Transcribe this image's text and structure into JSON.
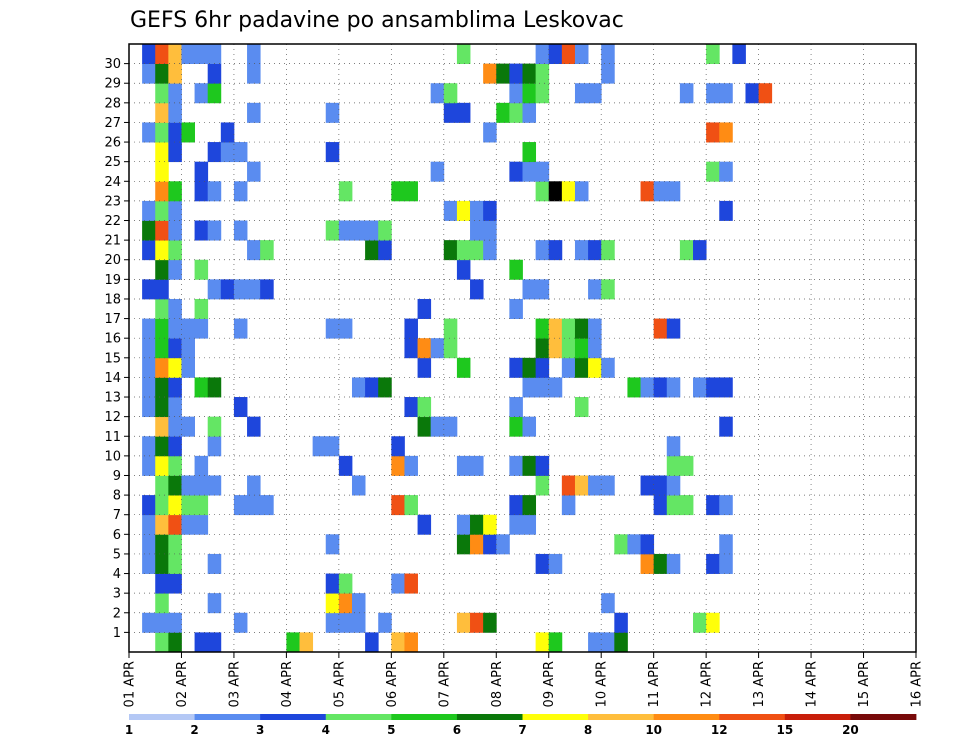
{
  "chart_data": {
    "type": "heatmap",
    "title": "GEFS 6hr padavine po ansamblima Leskovac",
    "xlabel": "",
    "ylabel": "",
    "x_tick_labels": [
      "01 APR",
      "02 APR",
      "03 APR",
      "04 APR",
      "05 APR",
      "06 APR",
      "07 APR",
      "08 APR",
      "09 APR",
      "10 APR",
      "11 APR",
      "12 APR",
      "13 APR",
      "14 APR",
      "15 APR",
      "16 APR"
    ],
    "time_steps": 60,
    "steps_per_day": 4,
    "members": [
      1,
      2,
      3,
      4,
      5,
      6,
      7,
      8,
      9,
      10,
      11,
      12,
      13,
      14,
      15,
      16,
      17,
      18,
      19,
      20,
      21,
      22,
      23,
      24,
      25,
      26,
      27,
      28,
      29,
      30
    ],
    "grid": true,
    "legend_position": "bottom",
    "legend_labels": [
      "1",
      "2",
      "3",
      "4",
      "5",
      "6",
      "7",
      "8",
      "10",
      "12",
      "15",
      "20"
    ],
    "bins": [
      1,
      2,
      3,
      4,
      5,
      6,
      7,
      8,
      10,
      12,
      15,
      20
    ],
    "colors": [
      "#b4c8f5",
      "#5a8cf0",
      "#1e46dc",
      "#64e664",
      "#1ec81e",
      "#0a780a",
      "#ffff0a",
      "#ffbe3c",
      "#ff8c14",
      "#f05014",
      "#c81e0a",
      "#780a0a"
    ],
    "cells": [
      [
        0,
        2,
        3
      ],
      [
        0,
        3,
        5
      ],
      [
        0,
        5,
        2
      ],
      [
        0,
        6,
        2
      ],
      [
        0,
        12,
        4
      ],
      [
        0,
        13,
        7
      ],
      [
        0,
        18,
        2
      ],
      [
        0,
        20,
        7
      ],
      [
        0,
        21,
        8
      ],
      [
        0,
        31,
        6
      ],
      [
        0,
        32,
        4
      ],
      [
        0,
        35,
        1
      ],
      [
        0,
        36,
        1
      ],
      [
        0,
        37,
        5
      ],
      [
        1,
        1,
        1
      ],
      [
        1,
        2,
        1
      ],
      [
        1,
        3,
        1
      ],
      [
        1,
        8,
        1
      ],
      [
        1,
        15,
        1
      ],
      [
        1,
        16,
        1
      ],
      [
        1,
        17,
        1
      ],
      [
        1,
        19,
        1
      ],
      [
        1,
        25,
        7
      ],
      [
        1,
        26,
        9
      ],
      [
        1,
        27,
        5
      ],
      [
        1,
        37,
        2
      ],
      [
        1,
        43,
        3
      ],
      [
        1,
        44,
        6
      ],
      [
        2,
        2,
        3
      ],
      [
        2,
        6,
        1
      ],
      [
        2,
        15,
        6
      ],
      [
        2,
        16,
        8
      ],
      [
        2,
        17,
        1
      ],
      [
        2,
        36,
        1
      ],
      [
        3,
        2,
        2
      ],
      [
        3,
        3,
        2
      ],
      [
        3,
        15,
        2
      ],
      [
        3,
        16,
        3
      ],
      [
        3,
        20,
        1
      ],
      [
        3,
        21,
        9
      ],
      [
        4,
        1,
        1
      ],
      [
        4,
        2,
        5
      ],
      [
        4,
        3,
        3
      ],
      [
        4,
        6,
        1
      ],
      [
        4,
        31,
        2
      ],
      [
        4,
        32,
        1
      ],
      [
        4,
        39,
        8
      ],
      [
        4,
        40,
        5
      ],
      [
        4,
        41,
        1
      ],
      [
        4,
        44,
        2
      ],
      [
        4,
        45,
        1
      ],
      [
        5,
        1,
        1
      ],
      [
        5,
        2,
        5
      ],
      [
        5,
        3,
        3
      ],
      [
        5,
        15,
        1
      ],
      [
        5,
        25,
        5
      ],
      [
        5,
        26,
        8
      ],
      [
        5,
        27,
        2
      ],
      [
        5,
        28,
        1
      ],
      [
        5,
        37,
        3
      ],
      [
        5,
        38,
        1
      ],
      [
        5,
        39,
        2
      ],
      [
        5,
        45,
        1
      ],
      [
        6,
        1,
        1
      ],
      [
        6,
        2,
        7
      ],
      [
        6,
        3,
        9
      ],
      [
        6,
        4,
        1
      ],
      [
        6,
        5,
        1
      ],
      [
        6,
        22,
        2
      ],
      [
        6,
        25,
        1
      ],
      [
        6,
        26,
        5
      ],
      [
        6,
        27,
        6
      ],
      [
        6,
        29,
        1
      ],
      [
        6,
        30,
        1
      ],
      [
        7,
        1,
        2
      ],
      [
        7,
        2,
        3
      ],
      [
        7,
        3,
        6
      ],
      [
        7,
        4,
        3
      ],
      [
        7,
        5,
        3
      ],
      [
        7,
        8,
        1
      ],
      [
        7,
        9,
        1
      ],
      [
        7,
        10,
        1
      ],
      [
        7,
        20,
        9
      ],
      [
        7,
        21,
        3
      ],
      [
        7,
        29,
        2
      ],
      [
        7,
        30,
        5
      ],
      [
        7,
        33,
        1
      ],
      [
        7,
        40,
        2
      ],
      [
        7,
        41,
        3
      ],
      [
        7,
        42,
        3
      ],
      [
        7,
        44,
        2
      ],
      [
        7,
        45,
        1
      ],
      [
        8,
        2,
        3
      ],
      [
        8,
        3,
        5
      ],
      [
        8,
        4,
        1
      ],
      [
        8,
        5,
        1
      ],
      [
        8,
        6,
        1
      ],
      [
        8,
        9,
        1
      ],
      [
        8,
        17,
        1
      ],
      [
        8,
        31,
        3
      ],
      [
        8,
        33,
        9
      ],
      [
        8,
        34,
        7
      ],
      [
        8,
        35,
        1
      ],
      [
        8,
        36,
        1
      ],
      [
        8,
        39,
        2
      ],
      [
        8,
        40,
        2
      ],
      [
        8,
        41,
        1
      ],
      [
        9,
        1,
        1
      ],
      [
        9,
        2,
        6
      ],
      [
        9,
        3,
        3
      ],
      [
        9,
        5,
        1
      ],
      [
        9,
        16,
        2
      ],
      [
        9,
        20,
        8
      ],
      [
        9,
        21,
        1
      ],
      [
        9,
        25,
        1
      ],
      [
        9,
        26,
        1
      ],
      [
        9,
        29,
        1
      ],
      [
        9,
        30,
        5
      ],
      [
        9,
        31,
        2
      ],
      [
        9,
        41,
        3
      ],
      [
        9,
        42,
        3
      ],
      [
        10,
        1,
        1
      ],
      [
        10,
        2,
        5
      ],
      [
        10,
        3,
        2
      ],
      [
        10,
        6,
        1
      ],
      [
        10,
        14,
        1
      ],
      [
        10,
        15,
        1
      ],
      [
        10,
        20,
        2
      ],
      [
        10,
        41,
        1
      ],
      [
        11,
        2,
        7
      ],
      [
        11,
        3,
        1
      ],
      [
        11,
        4,
        1
      ],
      [
        11,
        6,
        3
      ],
      [
        11,
        9,
        2
      ],
      [
        11,
        22,
        5
      ],
      [
        11,
        23,
        1
      ],
      [
        11,
        24,
        1
      ],
      [
        11,
        29,
        4
      ],
      [
        11,
        30,
        1
      ],
      [
        11,
        45,
        2
      ],
      [
        12,
        1,
        1
      ],
      [
        12,
        2,
        5
      ],
      [
        12,
        3,
        1
      ],
      [
        12,
        8,
        2
      ],
      [
        12,
        21,
        2
      ],
      [
        12,
        22,
        3
      ],
      [
        12,
        29,
        1
      ],
      [
        12,
        34,
        3
      ],
      [
        13,
        1,
        1
      ],
      [
        13,
        2,
        5
      ],
      [
        13,
        3,
        2
      ],
      [
        13,
        5,
        4
      ],
      [
        13,
        6,
        5
      ],
      [
        13,
        17,
        1
      ],
      [
        13,
        18,
        2
      ],
      [
        13,
        19,
        5
      ],
      [
        13,
        30,
        1
      ],
      [
        13,
        31,
        1
      ],
      [
        13,
        32,
        1
      ],
      [
        13,
        38,
        4
      ],
      [
        13,
        39,
        1
      ],
      [
        13,
        40,
        2
      ],
      [
        13,
        41,
        1
      ],
      [
        13,
        43,
        1
      ],
      [
        13,
        44,
        2
      ],
      [
        13,
        45,
        2
      ],
      [
        14,
        1,
        1
      ],
      [
        14,
        2,
        8
      ],
      [
        14,
        3,
        6
      ],
      [
        14,
        4,
        1
      ],
      [
        14,
        22,
        2
      ],
      [
        14,
        25,
        4
      ],
      [
        14,
        29,
        2
      ],
      [
        14,
        30,
        5
      ],
      [
        14,
        31,
        2
      ],
      [
        14,
        33,
        1
      ],
      [
        14,
        34,
        5
      ],
      [
        14,
        35,
        6
      ],
      [
        14,
        36,
        1
      ],
      [
        15,
        1,
        1
      ],
      [
        15,
        2,
        4
      ],
      [
        15,
        3,
        2
      ],
      [
        15,
        4,
        1
      ],
      [
        15,
        21,
        2
      ],
      [
        15,
        22,
        8
      ],
      [
        15,
        23,
        1
      ],
      [
        15,
        24,
        3
      ],
      [
        15,
        31,
        5
      ],
      [
        15,
        32,
        7
      ],
      [
        15,
        33,
        3
      ],
      [
        15,
        34,
        4
      ],
      [
        15,
        35,
        1
      ],
      [
        16,
        1,
        1
      ],
      [
        16,
        2,
        4
      ],
      [
        16,
        3,
        1
      ],
      [
        16,
        4,
        1
      ],
      [
        16,
        5,
        1
      ],
      [
        16,
        8,
        1
      ],
      [
        16,
        15,
        1
      ],
      [
        16,
        16,
        1
      ],
      [
        16,
        21,
        2
      ],
      [
        16,
        24,
        3
      ],
      [
        16,
        31,
        4
      ],
      [
        16,
        32,
        7
      ],
      [
        16,
        33,
        3
      ],
      [
        16,
        34,
        5
      ],
      [
        16,
        35,
        1
      ],
      [
        16,
        40,
        9
      ],
      [
        16,
        41,
        2
      ],
      [
        17,
        2,
        3
      ],
      [
        17,
        3,
        1
      ],
      [
        17,
        5,
        3
      ],
      [
        17,
        22,
        2
      ],
      [
        17,
        29,
        1
      ],
      [
        18,
        1,
        2
      ],
      [
        18,
        2,
        2
      ],
      [
        18,
        6,
        1
      ],
      [
        18,
        7,
        2
      ],
      [
        18,
        8,
        1
      ],
      [
        18,
        9,
        1
      ],
      [
        18,
        10,
        2
      ],
      [
        18,
        26,
        2
      ],
      [
        18,
        30,
        1
      ],
      [
        18,
        31,
        1
      ],
      [
        18,
        35,
        1
      ],
      [
        18,
        36,
        3
      ],
      [
        19,
        2,
        5
      ],
      [
        19,
        3,
        1
      ],
      [
        19,
        5,
        3
      ],
      [
        19,
        25,
        2
      ],
      [
        19,
        29,
        4
      ],
      [
        20,
        1,
        2
      ],
      [
        20,
        2,
        6
      ],
      [
        20,
        3,
        3
      ],
      [
        20,
        9,
        1
      ],
      [
        20,
        10,
        3
      ],
      [
        20,
        18,
        5
      ],
      [
        20,
        19,
        2
      ],
      [
        20,
        24,
        5
      ],
      [
        20,
        25,
        3
      ],
      [
        20,
        26,
        3
      ],
      [
        20,
        27,
        1
      ],
      [
        20,
        31,
        1
      ],
      [
        20,
        32,
        2
      ],
      [
        20,
        34,
        1
      ],
      [
        20,
        35,
        2
      ],
      [
        20,
        36,
        3
      ],
      [
        20,
        42,
        3
      ],
      [
        20,
        43,
        2
      ],
      [
        21,
        1,
        5
      ],
      [
        21,
        2,
        9
      ],
      [
        21,
        3,
        1
      ],
      [
        21,
        5,
        2
      ],
      [
        21,
        6,
        1
      ],
      [
        21,
        8,
        1
      ],
      [
        21,
        15,
        3
      ],
      [
        21,
        16,
        1
      ],
      [
        21,
        17,
        1
      ],
      [
        21,
        18,
        1
      ],
      [
        21,
        19,
        3
      ],
      [
        21,
        26,
        1
      ],
      [
        21,
        27,
        1
      ],
      [
        22,
        1,
        1
      ],
      [
        22,
        2,
        3
      ],
      [
        22,
        3,
        1
      ],
      [
        22,
        24,
        1
      ],
      [
        22,
        25,
        6
      ],
      [
        22,
        26,
        1
      ],
      [
        22,
        27,
        2
      ],
      [
        22,
        45,
        2
      ],
      [
        23,
        2,
        8
      ],
      [
        23,
        3,
        4
      ],
      [
        23,
        5,
        2
      ],
      [
        23,
        6,
        1
      ],
      [
        23,
        8,
        1
      ],
      [
        23,
        16,
        3
      ],
      [
        23,
        20,
        4
      ],
      [
        23,
        21,
        4
      ],
      [
        23,
        31,
        3
      ],
      [
        23,
        32,
        12
      ],
      [
        23,
        33,
        6
      ],
      [
        23,
        34,
        1
      ],
      [
        23,
        39,
        9
      ],
      [
        23,
        40,
        1
      ],
      [
        23,
        41,
        1
      ],
      [
        24,
        2,
        6
      ],
      [
        24,
        5,
        2
      ],
      [
        24,
        9,
        1
      ],
      [
        24,
        23,
        1
      ],
      [
        24,
        29,
        2
      ],
      [
        24,
        30,
        1
      ],
      [
        24,
        31,
        1
      ],
      [
        24,
        44,
        3
      ],
      [
        24,
        45,
        1
      ],
      [
        25,
        2,
        6
      ],
      [
        25,
        3,
        2
      ],
      [
        25,
        6,
        2
      ],
      [
        25,
        7,
        1
      ],
      [
        25,
        8,
        1
      ],
      [
        25,
        15,
        2
      ],
      [
        25,
        30,
        4
      ],
      [
        26,
        1,
        1
      ],
      [
        26,
        2,
        3
      ],
      [
        26,
        3,
        2
      ],
      [
        26,
        4,
        4
      ],
      [
        26,
        7,
        2
      ],
      [
        26,
        27,
        1
      ],
      [
        26,
        44,
        9
      ],
      [
        26,
        45,
        8
      ],
      [
        27,
        2,
        7
      ],
      [
        27,
        3,
        1
      ],
      [
        27,
        9,
        1
      ],
      [
        27,
        15,
        1
      ],
      [
        27,
        24,
        2
      ],
      [
        27,
        25,
        2
      ],
      [
        27,
        28,
        4
      ],
      [
        27,
        29,
        3
      ],
      [
        27,
        30,
        1
      ],
      [
        28,
        2,
        3
      ],
      [
        28,
        3,
        1
      ],
      [
        28,
        5,
        1
      ],
      [
        28,
        6,
        4
      ],
      [
        28,
        23,
        1
      ],
      [
        28,
        24,
        3
      ],
      [
        28,
        29,
        1
      ],
      [
        28,
        30,
        4
      ],
      [
        28,
        31,
        3
      ],
      [
        28,
        34,
        1
      ],
      [
        28,
        35,
        1
      ],
      [
        28,
        42,
        1
      ],
      [
        28,
        44,
        1
      ],
      [
        28,
        45,
        1
      ],
      [
        28,
        47,
        2
      ],
      [
        28,
        48,
        9
      ],
      [
        29,
        1,
        1
      ],
      [
        29,
        2,
        5
      ],
      [
        29,
        3,
        7
      ],
      [
        29,
        6,
        2
      ],
      [
        29,
        9,
        1
      ],
      [
        29,
        27,
        8
      ],
      [
        29,
        28,
        5
      ],
      [
        29,
        29,
        2
      ],
      [
        29,
        30,
        5
      ],
      [
        29,
        31,
        3
      ],
      [
        29,
        36,
        1
      ],
      [
        30,
        1,
        2
      ],
      [
        30,
        2,
        9
      ],
      [
        30,
        3,
        7
      ],
      [
        30,
        4,
        1
      ],
      [
        30,
        5,
        1
      ],
      [
        30,
        6,
        1
      ],
      [
        30,
        9,
        1
      ],
      [
        30,
        25,
        3
      ],
      [
        30,
        31,
        1
      ],
      [
        30,
        32,
        2
      ],
      [
        30,
        33,
        9
      ],
      [
        30,
        34,
        1
      ],
      [
        30,
        36,
        1
      ],
      [
        30,
        44,
        3
      ],
      [
        30,
        46,
        2
      ]
    ]
  }
}
